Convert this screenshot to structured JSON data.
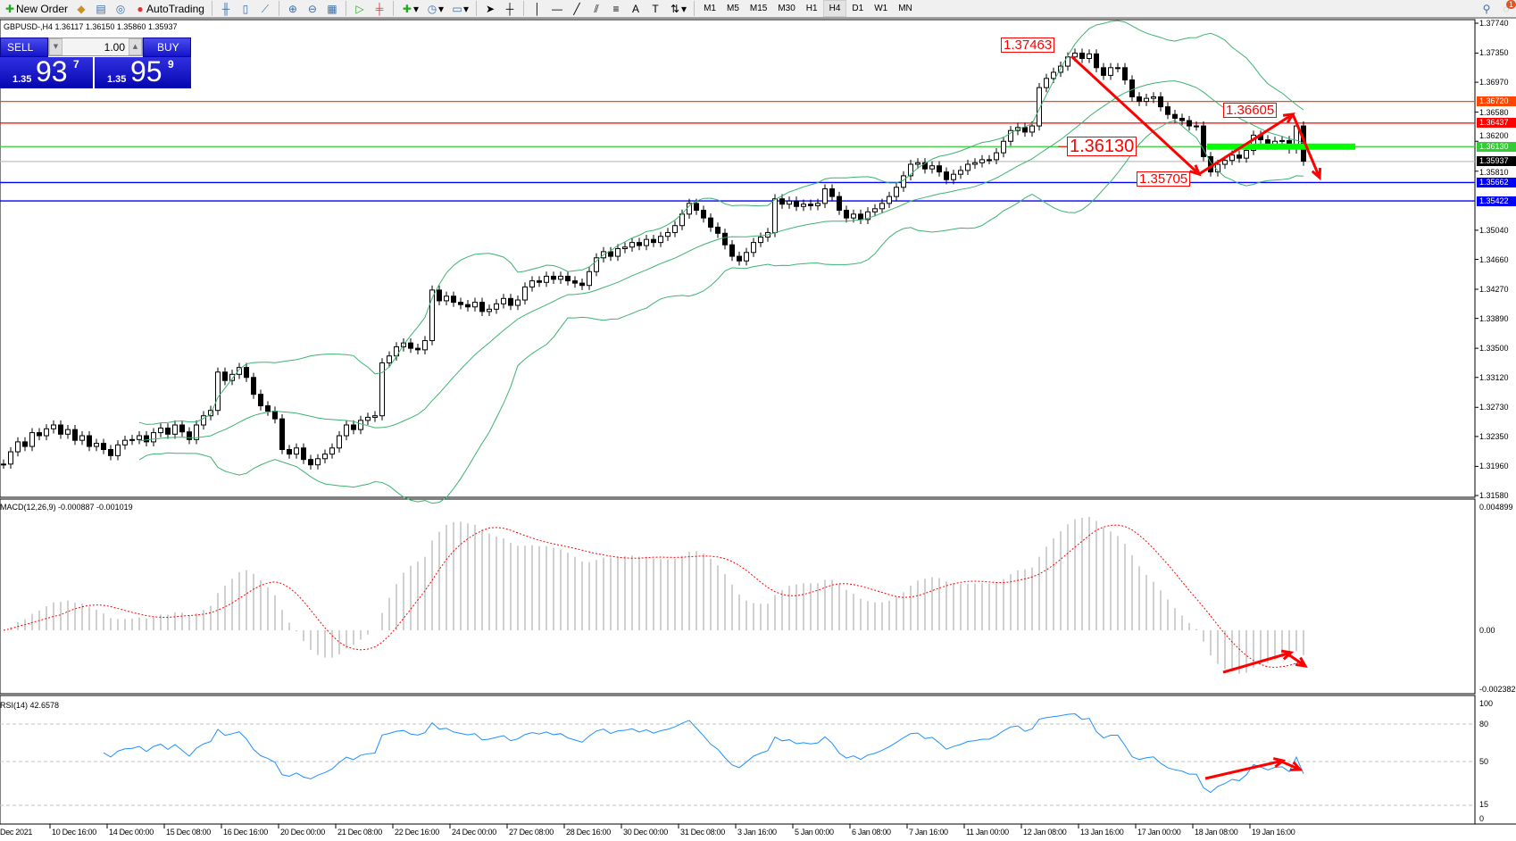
{
  "toolbar": {
    "new_order": "New Order",
    "auto_trading": "AutoTrading",
    "timeframes": [
      "M1",
      "M5",
      "M15",
      "M30",
      "H1",
      "H4",
      "D1",
      "W1",
      "MN"
    ],
    "active_timeframe": "H4",
    "notifications": "1"
  },
  "chart": {
    "title": "GBPUSD-,H4  1.36117 1.36150 1.35860 1.35937",
    "symbol": "GBPUSD-",
    "timeframe": "H4"
  },
  "one_click": {
    "sell": "SELL",
    "buy": "BUY",
    "lot": "1.00",
    "bid_big": "1.35",
    "bid_pips": "93",
    "bid_frac": "7",
    "ask_big": "1.35",
    "ask_pips": "95",
    "ask_frac": "9"
  },
  "price_axis": [
    "1.37740",
    "1.37350",
    "1.36970",
    "1.36580",
    "1.36200",
    "1.35810",
    "1.35040",
    "1.34660",
    "1.34270",
    "1.33890",
    "1.33500",
    "1.33120",
    "1.32730",
    "1.32350",
    "1.31960",
    "1.31580"
  ],
  "levels": [
    {
      "price": "1.36720",
      "color": "#ff4500"
    },
    {
      "price": "1.36437",
      "color": "#ff0000"
    },
    {
      "price": "1.36130",
      "color": "#32cd32"
    },
    {
      "price": "1.35937",
      "color": "#000000",
      "line": "#c0c0c0"
    },
    {
      "price": "1.35662",
      "color": "#0000ff"
    },
    {
      "price": "1.35422",
      "color": "#0000ff"
    }
  ],
  "annotations": {
    "high": "1.37463",
    "mid": "1.36130",
    "low": "1.35705",
    "swing": "1.36605"
  },
  "macd": {
    "label": "MACD(12,26,9) -0.000887 -0.001019",
    "axis": [
      "0.004899",
      "0.00",
      "-0.002382"
    ]
  },
  "rsi": {
    "label": "RSI(14) 42.6578",
    "axis": [
      "100",
      "80",
      "50",
      "15",
      "0"
    ]
  },
  "time_axis": [
    "Dec 2021",
    "10 Dec 16:00",
    "14 Dec 00:00",
    "15 Dec 08:00",
    "16 Dec 16:00",
    "20 Dec 00:00",
    "21 Dec 08:00",
    "22 Dec 16:00",
    "24 Dec 00:00",
    "27 Dec 08:00",
    "28 Dec 16:00",
    "30 Dec 00:00",
    "31 Dec 08:00",
    "3 Jan 16:00",
    "5 Jan 00:00",
    "6 Jan 08:00",
    "7 Jan 16:00",
    "11 Jan 00:00",
    "12 Jan 08:00",
    "13 Jan 16:00",
    "17 Jan 00:00",
    "18 Jan 08:00",
    "19 Jan 16:00"
  ],
  "closes": [
    1.3199,
    1.3215,
    1.3228,
    1.3222,
    1.324,
    1.3236,
    1.3245,
    1.325,
    1.3238,
    1.3244,
    1.323,
    1.3236,
    1.3222,
    1.3226,
    1.3218,
    1.321,
    1.3224,
    1.323,
    1.3231,
    1.3236,
    1.3228,
    1.324,
    1.3246,
    1.3238,
    1.325,
    1.3241,
    1.3231,
    1.325,
    1.3262,
    1.3269,
    1.3319,
    1.3308,
    1.3316,
    1.3325,
    1.3312,
    1.329,
    1.3275,
    1.3268,
    1.3258,
    1.3218,
    1.3212,
    1.322,
    1.3205,
    1.3198,
    1.3206,
    1.3212,
    1.322,
    1.3236,
    1.325,
    1.3244,
    1.3256,
    1.326,
    1.3262,
    1.3331,
    1.334,
    1.3352,
    1.3357,
    1.335,
    1.3348,
    1.336,
    1.3426,
    1.3412,
    1.3418,
    1.341,
    1.3407,
    1.3404,
    1.341,
    1.3398,
    1.3401,
    1.3408,
    1.3415,
    1.3406,
    1.3413,
    1.343,
    1.3438,
    1.3436,
    1.3444,
    1.344,
    1.3444,
    1.3438,
    1.3435,
    1.3432,
    1.345,
    1.3468,
    1.3476,
    1.347,
    1.348,
    1.3482,
    1.3488,
    1.3484,
    1.3492,
    1.3488,
    1.3496,
    1.3501,
    1.351,
    1.3525,
    1.3539,
    1.353,
    1.352,
    1.3508,
    1.35,
    1.3485,
    1.347,
    1.3464,
    1.3475,
    1.3488,
    1.3495,
    1.3501,
    1.3545,
    1.3538,
    1.3542,
    1.3535,
    1.3538,
    1.3536,
    1.3539,
    1.3558,
    1.3548,
    1.353,
    1.352,
    1.3525,
    1.3518,
    1.3528,
    1.3532,
    1.3539,
    1.3548,
    1.356,
    1.3575,
    1.359,
    1.3592,
    1.3584,
    1.3588,
    1.358,
    1.357,
    1.3577,
    1.3582,
    1.359,
    1.3592,
    1.3596,
    1.3596,
    1.3605,
    1.362,
    1.3634,
    1.3638,
    1.3632,
    1.364,
    1.369,
    1.3702,
    1.371,
    1.3718,
    1.373,
    1.3735,
    1.3728,
    1.3734,
    1.3716,
    1.3706,
    1.3716,
    1.3716,
    1.37,
    1.3678,
    1.3672,
    1.3676,
    1.3678,
    1.3665,
    1.3655,
    1.365,
    1.3647,
    1.364,
    1.364,
    1.36,
    1.358,
    1.359,
    1.3595,
    1.3602,
    1.3598,
    1.3608,
    1.3628,
    1.3622,
    1.3615,
    1.362,
    1.3621,
    1.361,
    1.364,
    1.3594
  ]
}
